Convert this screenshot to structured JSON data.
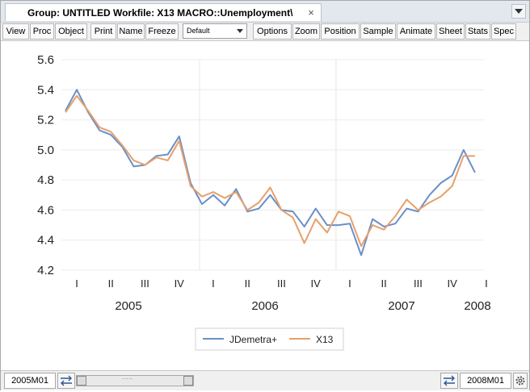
{
  "window": {
    "tab_title": "Group: UNTITLED   Workfile: X13 MACRO::Unemployment\\",
    "close_glyph": "×"
  },
  "toolbar": {
    "buttons": [
      "View",
      "Proc",
      "Object",
      "Print",
      "Name",
      "Freeze",
      "Options",
      "Zoom",
      "Position",
      "Sample",
      "Animate",
      "Sheet",
      "Stats",
      "Spec"
    ],
    "dropdown_value": "Default"
  },
  "status": {
    "start": "2005M01",
    "end": "2008M01"
  },
  "chart_data": {
    "type": "line",
    "title": "",
    "xlabel": "",
    "ylabel": "",
    "ylim": [
      4.2,
      5.6
    ],
    "yticks": [
      "5.6",
      "5.4",
      "5.2",
      "5.0",
      "4.8",
      "4.6",
      "4.4",
      "4.2"
    ],
    "quarter_labels": [
      "I",
      "II",
      "III",
      "IV",
      "I",
      "II",
      "III",
      "IV",
      "I",
      "II",
      "III",
      "IV",
      "I"
    ],
    "year_labels": [
      "2005",
      "2006",
      "2007",
      "2008"
    ],
    "x": [
      "2005M01",
      "2005M02",
      "2005M03",
      "2005M04",
      "2005M05",
      "2005M06",
      "2005M07",
      "2005M08",
      "2005M09",
      "2005M10",
      "2005M11",
      "2005M12",
      "2006M01",
      "2006M02",
      "2006M03",
      "2006M04",
      "2006M05",
      "2006M06",
      "2006M07",
      "2006M08",
      "2006M09",
      "2006M10",
      "2006M11",
      "2006M12",
      "2007M01",
      "2007M02",
      "2007M03",
      "2007M04",
      "2007M05",
      "2007M06",
      "2007M07",
      "2007M08",
      "2007M09",
      "2007M10",
      "2007M11",
      "2007M12",
      "2008M01"
    ],
    "grid": true,
    "legend_position": "bottom-center",
    "series": [
      {
        "name": "JDemetra+",
        "color": "#6b8fc7",
        "values": [
          5.26,
          5.4,
          5.25,
          5.13,
          5.1,
          5.02,
          4.89,
          4.9,
          4.96,
          4.97,
          5.09,
          4.78,
          4.64,
          4.7,
          4.63,
          4.74,
          4.59,
          4.61,
          4.7,
          4.6,
          4.59,
          4.49,
          4.61,
          4.5,
          4.5,
          4.51,
          4.3,
          4.54,
          4.49,
          4.51,
          4.61,
          4.59,
          4.7,
          4.78,
          4.83,
          5.0,
          4.85
        ]
      },
      {
        "name": "X13",
        "color": "#e6a06a",
        "values": [
          5.25,
          5.36,
          5.26,
          5.15,
          5.12,
          5.03,
          4.93,
          4.9,
          4.95,
          4.93,
          5.06,
          4.76,
          4.69,
          4.72,
          4.68,
          4.72,
          4.6,
          4.65,
          4.75,
          4.6,
          4.55,
          4.38,
          4.54,
          4.45,
          4.59,
          4.56,
          4.36,
          4.5,
          4.47,
          4.56,
          4.67,
          4.6,
          4.65,
          4.69,
          4.76,
          4.96,
          4.96
        ]
      }
    ]
  }
}
